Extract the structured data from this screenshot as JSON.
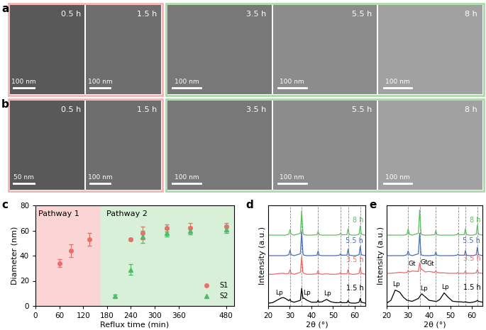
{
  "figure": {
    "tem_rows": [
      {
        "panel_label": "a",
        "groups": [
          {
            "color": "#f4b3b6",
            "images": [
              {
                "time": "0.5 h",
                "scale_bar": "100 nm"
              },
              {
                "time": "1.5 h",
                "scale_bar": "100 nm"
              }
            ]
          },
          {
            "color": "#a9dca9",
            "images": [
              {
                "time": "3.5 h",
                "scale_bar": "100 nm"
              },
              {
                "time": "5.5 h",
                "scale_bar": "100 nm"
              },
              {
                "time": "8 h",
                "scale_bar": "100 nm"
              }
            ]
          }
        ]
      },
      {
        "panel_label": "b",
        "groups": [
          {
            "color": "#f4b3b6",
            "images": [
              {
                "time": "0.5 h",
                "scale_bar": "50 nm"
              },
              {
                "time": "1.5 h",
                "scale_bar": "100 nm"
              }
            ]
          },
          {
            "color": "#a9dca9",
            "images": [
              {
                "time": "3.5 h",
                "scale_bar": "100 nm"
              },
              {
                "time": "5.5 h",
                "scale_bar": "100 nm"
              },
              {
                "time": "8 h",
                "scale_bar": "100 nm"
              }
            ]
          }
        ]
      }
    ]
  },
  "chart_data": [
    {
      "panel_label": "c",
      "type": "scatter",
      "x_label": "Reflux time (min)",
      "y_label": "Diameter (nm)",
      "xlim": [
        0,
        500
      ],
      "ylim": [
        0,
        80
      ],
      "xticks": [
        0,
        60,
        120,
        180,
        240,
        300,
        360,
        480
      ],
      "yticks": [
        0,
        20,
        40,
        60,
        80
      ],
      "legend": "lower right",
      "regions": [
        {
          "label": "Pathway 1",
          "from": 0,
          "to": 165,
          "color": "#fbd5d6"
        },
        {
          "label": "Pathway 2",
          "from": 165,
          "to": 500,
          "color": "#d8f0d8"
        }
      ],
      "series": [
        {
          "name": "S1",
          "color": "#e8706a",
          "marker": "circle",
          "x": [
            60,
            90,
            135,
            240,
            270,
            330,
            390,
            480
          ],
          "values": [
            34,
            44,
            53,
            53,
            58,
            62,
            62,
            63
          ],
          "errors": [
            3,
            5,
            5,
            1,
            5,
            3,
            4,
            3
          ]
        },
        {
          "name": "S2",
          "color": "#4cbb6c",
          "marker": "triangle",
          "x": [
            200,
            240,
            270,
            330,
            390,
            480
          ],
          "values": [
            8,
            29,
            55,
            58,
            60,
            61
          ],
          "errors": [
            1,
            4,
            5,
            3,
            3,
            3
          ]
        }
      ]
    },
    {
      "panel_label": "d",
      "type": "line",
      "x_label": "2θ (°)",
      "y_label": "Intensity (a.u.)",
      "xlim": [
        20,
        65
      ],
      "ylim": [
        0,
        10.8
      ],
      "xticks": [
        20,
        30,
        40,
        50,
        60
      ],
      "tick_labels": "x",
      "reference_lines": [
        30.1,
        35.5,
        43.1,
        53.5,
        57.0,
        62.6
      ],
      "x": [
        20,
        22,
        24,
        26,
        27,
        28,
        29.6,
        30.1,
        30.6,
        32,
        34.9,
        35.5,
        36.1,
        36.5,
        38,
        40,
        42.6,
        43.1,
        43.6,
        45,
        47,
        49,
        51,
        53.0,
        53.5,
        54.0,
        56.5,
        57.0,
        57.5,
        59,
        60.5,
        62.1,
        62.6,
        63.1,
        65
      ],
      "series": [
        {
          "name": "1.5 h",
          "color": "#000000",
          "values": [
            0.3,
            0.35,
            0.6,
            0.85,
            0.9,
            0.8,
            0.55,
            0.7,
            0.5,
            0.4,
            0.6,
            1.9,
            0.8,
            0.85,
            0.6,
            0.4,
            0.4,
            0.6,
            0.4,
            0.45,
            0.7,
            0.45,
            0.35,
            0.35,
            0.45,
            0.35,
            0.35,
            0.6,
            0.35,
            0.3,
            0.3,
            0.4,
            0.8,
            0.4,
            0.3
          ]
        },
        {
          "name": "3.5 h",
          "color": "#e86a6a",
          "values": [
            3.4,
            3.4,
            3.45,
            3.5,
            3.5,
            3.45,
            3.5,
            3.9,
            3.5,
            3.4,
            3.6,
            5.3,
            3.6,
            3.5,
            3.4,
            3.4,
            3.45,
            3.8,
            3.45,
            3.4,
            3.45,
            3.4,
            3.4,
            3.45,
            3.6,
            3.45,
            3.45,
            3.9,
            3.45,
            3.4,
            3.4,
            3.5,
            4.1,
            3.5,
            3.4
          ]
        },
        {
          "name": "5.5 h",
          "color": "#4a6fb5",
          "values": [
            5.4,
            5.4,
            5.4,
            5.4,
            5.4,
            5.4,
            5.5,
            6.0,
            5.5,
            5.4,
            5.6,
            8.0,
            5.6,
            5.45,
            5.4,
            5.4,
            5.45,
            5.9,
            5.45,
            5.4,
            5.4,
            5.4,
            5.4,
            5.45,
            5.6,
            5.45,
            5.45,
            6.1,
            5.45,
            5.4,
            5.4,
            5.5,
            6.4,
            5.5,
            5.4
          ]
        },
        {
          "name": "8 h",
          "color": "#5cbf5c",
          "values": [
            7.6,
            7.6,
            7.6,
            7.6,
            7.6,
            7.6,
            7.7,
            8.2,
            7.7,
            7.6,
            7.8,
            10.2,
            7.8,
            7.65,
            7.6,
            7.6,
            7.65,
            8.0,
            7.65,
            7.6,
            7.6,
            7.6,
            7.6,
            7.65,
            7.8,
            7.65,
            7.65,
            8.3,
            7.65,
            7.6,
            7.6,
            7.7,
            8.6,
            7.7,
            7.6
          ]
        }
      ],
      "annotations": [
        {
          "text": "Lp",
          "x": 25.0,
          "y": 1.1
        },
        {
          "text": "Lp",
          "x": 37.8,
          "y": 1.1
        },
        {
          "text": "Lp",
          "x": 47.5,
          "y": 1.0
        }
      ]
    },
    {
      "panel_label": "e",
      "type": "line",
      "x_label": "2θ (°)",
      "y_label": "Intensity (a.u.)",
      "xlim": [
        20,
        65
      ],
      "ylim": [
        0,
        10.8
      ],
      "xticks": [
        20,
        30,
        40,
        50,
        60
      ],
      "tick_labels": "x",
      "reference_lines": [
        30.1,
        35.5,
        43.1,
        53.5,
        57.0,
        62.6
      ],
      "x": [
        20,
        22,
        24,
        26,
        27,
        28,
        29.6,
        30.1,
        30.6,
        32,
        34.9,
        35.5,
        36.1,
        36.5,
        38,
        40,
        42.6,
        43.1,
        43.6,
        45,
        47,
        49,
        51,
        53.0,
        53.5,
        54.0,
        56.5,
        57.0,
        57.5,
        59,
        60.5,
        62.1,
        62.6,
        63.1,
        65
      ],
      "series": [
        {
          "name": "1.5 h",
          "color": "#000000",
          "values": [
            0.3,
            0.6,
            1.7,
            1.5,
            1.2,
            0.9,
            0.6,
            0.6,
            0.55,
            0.5,
            0.8,
            1.0,
            1.2,
            1.3,
            1.0,
            0.6,
            0.5,
            0.5,
            0.5,
            0.7,
            1.4,
            0.9,
            0.5,
            0.45,
            0.45,
            0.45,
            0.4,
            0.45,
            0.4,
            0.35,
            0.4,
            0.5,
            0.6,
            0.5,
            0.4
          ]
        },
        {
          "name": "3.5 h",
          "color": "#e86a6a",
          "values": [
            3.5,
            3.5,
            3.55,
            3.6,
            3.6,
            3.55,
            3.6,
            3.8,
            3.65,
            3.75,
            3.7,
            4.6,
            3.9,
            3.95,
            3.65,
            3.7,
            3.6,
            3.75,
            3.6,
            3.55,
            3.55,
            3.5,
            3.5,
            3.5,
            3.6,
            3.5,
            3.5,
            3.75,
            3.5,
            3.5,
            3.5,
            3.55,
            3.9,
            3.55,
            3.5
          ]
        },
        {
          "name": "5.5 h",
          "color": "#4a6fb5",
          "values": [
            5.4,
            5.4,
            5.4,
            5.4,
            5.4,
            5.4,
            5.5,
            5.9,
            5.5,
            5.4,
            5.6,
            7.8,
            5.6,
            5.45,
            5.4,
            5.4,
            5.45,
            5.8,
            5.45,
            5.4,
            5.4,
            5.4,
            5.4,
            5.45,
            5.55,
            5.45,
            5.45,
            5.95,
            5.45,
            5.4,
            5.4,
            5.5,
            6.3,
            5.5,
            5.4
          ]
        },
        {
          "name": "8 h",
          "color": "#5cbf5c",
          "values": [
            7.6,
            7.6,
            7.6,
            7.6,
            7.6,
            7.6,
            7.7,
            8.3,
            7.7,
            7.6,
            7.8,
            10.3,
            7.8,
            7.65,
            7.6,
            7.6,
            7.65,
            8.1,
            7.65,
            7.6,
            7.6,
            7.6,
            7.6,
            7.65,
            7.8,
            7.65,
            7.65,
            8.3,
            7.65,
            7.6,
            7.6,
            7.7,
            8.7,
            7.7,
            7.6
          ]
        }
      ],
      "annotations": [
        {
          "text": "Lp",
          "x": 24.5,
          "y": 2.0
        },
        {
          "text": "Lp",
          "x": 37.5,
          "y": 1.55
        },
        {
          "text": "Lp",
          "x": 47.5,
          "y": 1.7
        },
        {
          "text": "Gt",
          "x": 32.0,
          "y": 4.2
        },
        {
          "text": "Gt",
          "x": 37.6,
          "y": 4.35
        },
        {
          "text": "Gt",
          "x": 40.6,
          "y": 4.15
        }
      ]
    }
  ]
}
